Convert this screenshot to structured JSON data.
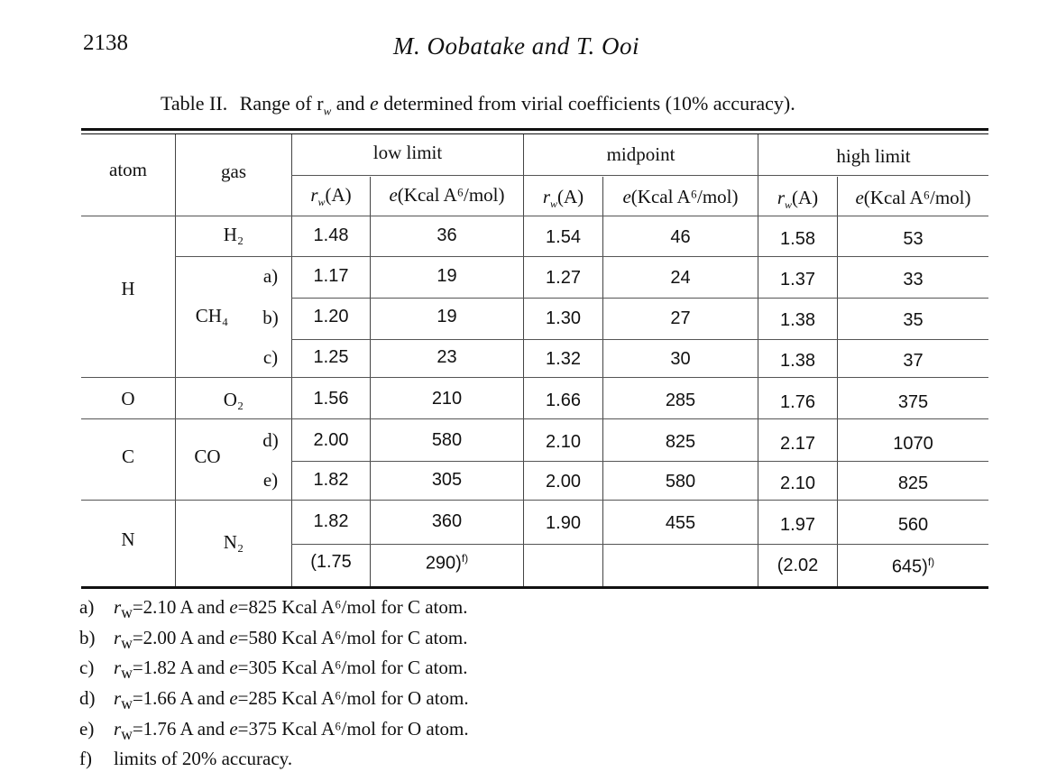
{
  "page": {
    "number": "2138",
    "running_head": "M. Oobatake and T. Ooi"
  },
  "table": {
    "caption_prefix": "Table II.",
    "caption_rest": "Range of r",
    "caption_sub": "w",
    "caption_mid": " and ",
    "caption_e": "e",
    "caption_end": " determined from virial coefficients (10% accuracy).",
    "headers": {
      "atom": "atom",
      "gas": "gas",
      "low_limit": "low limit",
      "midpoint": "midpoint",
      "high_limit": "high limit",
      "rw_label": "r",
      "rw_sub": "w",
      "rw_unit": "(A)",
      "e_label": "e",
      "e_unit": "(Kcal A⁶/mol)"
    },
    "atoms": {
      "H": "H",
      "O": "O",
      "C": "C",
      "N": "N"
    },
    "gases": {
      "H2": "H₂",
      "CH4": "CH₄",
      "O2": "O₂",
      "CO": "CO",
      "N2": "N₂"
    },
    "variants": {
      "a": "a)",
      "b": "b)",
      "c": "c)",
      "d": "d)",
      "e": "e)"
    },
    "rows": [
      [
        "1.48",
        "36",
        "1.54",
        "46",
        "1.58",
        "53"
      ],
      [
        "1.17",
        "19",
        "1.27",
        "24",
        "1.37",
        "33"
      ],
      [
        "1.20",
        "19",
        "1.30",
        "27",
        "1.38",
        "35"
      ],
      [
        "1.25",
        "23",
        "1.32",
        "30",
        "1.38",
        "37"
      ],
      [
        "1.56",
        "210",
        "1.66",
        "285",
        "1.76",
        "375"
      ],
      [
        "2.00",
        "580",
        "2.10",
        "825",
        "2.17",
        "1070"
      ],
      [
        "1.82",
        "305",
        "2.00",
        "580",
        "2.10",
        "825"
      ],
      [
        "1.82",
        "360",
        "1.90",
        "455",
        "1.97",
        "560"
      ]
    ],
    "n2_extra": {
      "low_rw": "(1.75",
      "low_e": "290)",
      "high_rw": "(2.02",
      "high_e": "645)",
      "mark": "f)"
    }
  },
  "footnotes": [
    {
      "key": "a)",
      "prefix": "r",
      "sub": "w",
      "text": "=2.10 A and ",
      "e": "e",
      "rest": "=825 Kcal A⁶/mol for C atom."
    },
    {
      "key": "b)",
      "prefix": "r",
      "sub": "w",
      "text": "=2.00 A and ",
      "e": "e",
      "rest": "=580 Kcal A⁶/mol for C atom."
    },
    {
      "key": "c)",
      "prefix": "r",
      "sub": "w",
      "text": "=1.82 A and ",
      "e": "e",
      "rest": "=305 Kcal A⁶/mol for C atom."
    },
    {
      "key": "d)",
      "prefix": "r",
      "sub": "w",
      "text": "=1.66 A and ",
      "e": "e",
      "rest": "=285 Kcal A⁶/mol for O atom."
    },
    {
      "key": "e)",
      "prefix": "r",
      "sub": "w",
      "text": "=1.76 A and ",
      "e": "e",
      "rest": "=375 Kcal A⁶/mol for O atom."
    },
    {
      "key": "f)",
      "text_plain": "limits of 20% accuracy."
    }
  ]
}
